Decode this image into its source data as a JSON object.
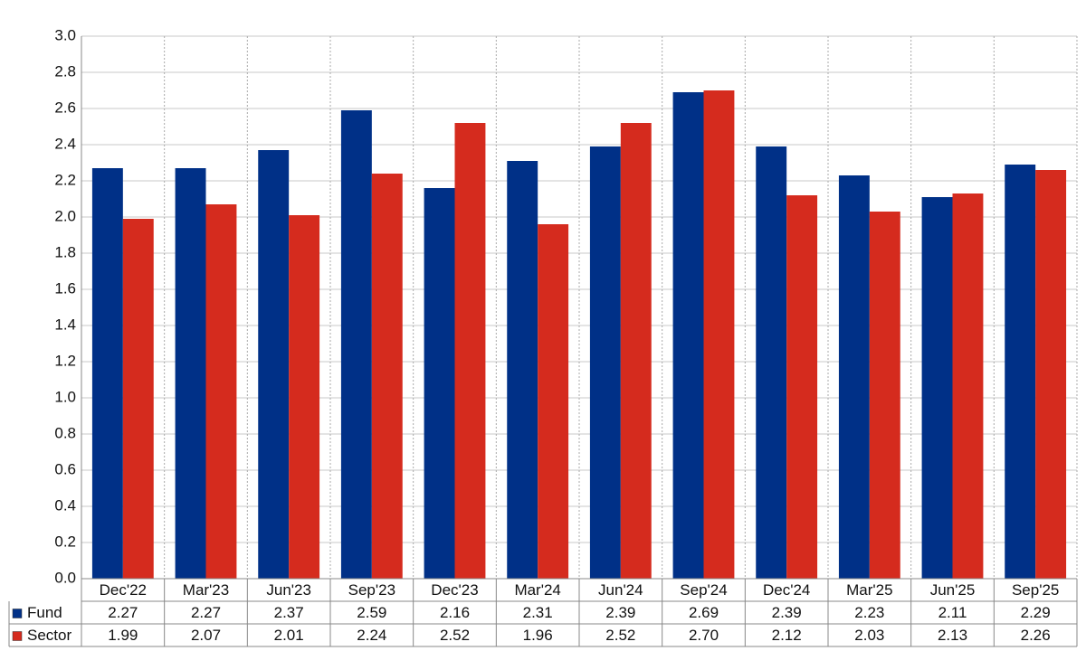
{
  "chart_data": {
    "type": "bar",
    "categories": [
      "Dec'22",
      "Mar'23",
      "Jun'23",
      "Sep'23",
      "Dec'23",
      "Mar'24",
      "Jun'24",
      "Sep'24",
      "Dec'24",
      "Mar'25",
      "Jun'25",
      "Sep'25"
    ],
    "series": [
      {
        "name": "Fund",
        "color": "#003087",
        "values": [
          2.27,
          2.27,
          2.37,
          2.59,
          2.16,
          2.31,
          2.39,
          2.69,
          2.39,
          2.23,
          2.11,
          2.29
        ],
        "value_labels": [
          "2.27",
          "2.27",
          "2.37",
          "2.59",
          "2.16",
          "2.31",
          "2.39",
          "2.69",
          "2.39",
          "2.23",
          "2.11",
          "2.29"
        ]
      },
      {
        "name": "Sector",
        "color": "#d52b1e",
        "values": [
          1.99,
          2.07,
          2.01,
          2.24,
          2.52,
          1.96,
          2.52,
          2.7,
          2.12,
          2.03,
          2.13,
          2.26
        ],
        "value_labels": [
          "1.99",
          "2.07",
          "2.01",
          "2.24",
          "2.52",
          "1.96",
          "2.52",
          "2.70",
          "2.12",
          "2.03",
          "2.13",
          "2.26"
        ]
      }
    ],
    "ylim": [
      0,
      3
    ],
    "yticks": [
      {
        "value": 0,
        "label": "0.0"
      },
      0.2,
      0.4,
      0.6,
      0.8,
      {
        "value": 1,
        "label": "1.0"
      },
      1.2,
      1.4,
      1.6,
      1.8,
      {
        "value": 2,
        "label": "2.0"
      },
      2.2,
      2.4,
      2.6,
      2.8,
      {
        "value": 3,
        "label": "3.0"
      }
    ],
    "grid": true
  }
}
